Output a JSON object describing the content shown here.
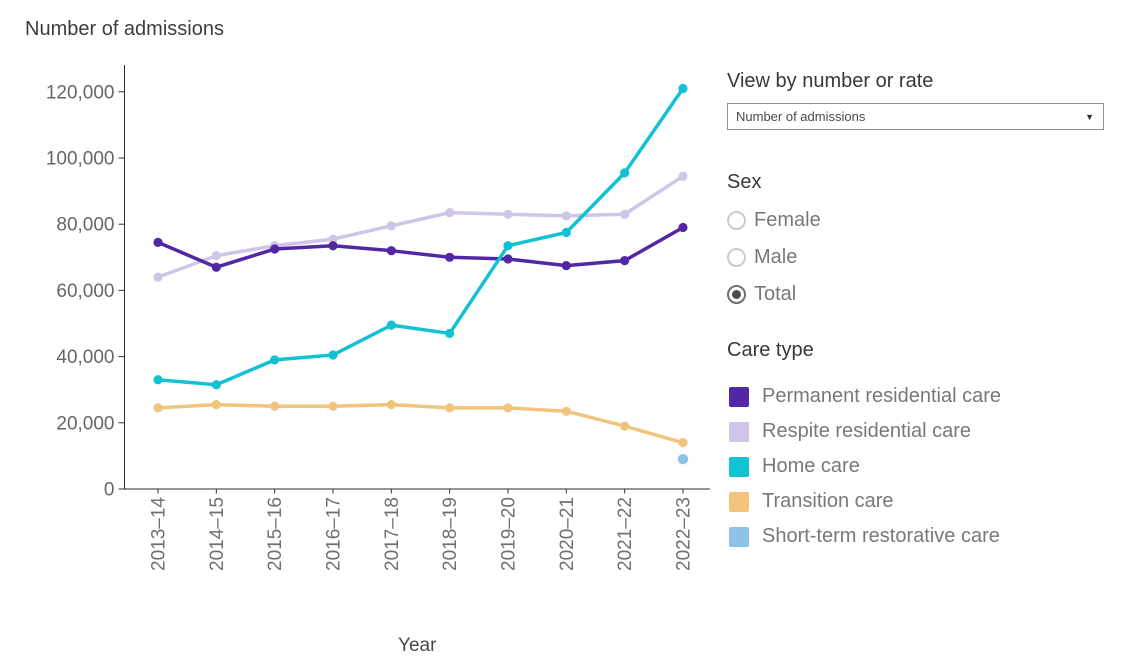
{
  "page_title": "Number of admissions",
  "chart_data": {
    "type": "line",
    "title": "Number of admissions",
    "xlabel": "Year",
    "ylabel": "Number of admissions",
    "categories": [
      "2013–14",
      "2014–15",
      "2015–16",
      "2016–17",
      "2017–18",
      "2018–19",
      "2019–20",
      "2020–21",
      "2021–22",
      "2022–23"
    ],
    "series": [
      {
        "name": "Permanent residential care",
        "color": "#5227a5",
        "values": [
          74500,
          67000,
          72500,
          73500,
          72000,
          70000,
          69500,
          67500,
          69000,
          79000
        ]
      },
      {
        "name": "Respite residential care",
        "color": "#cfc5e9",
        "values": [
          64000,
          70500,
          73500,
          75500,
          79500,
          83500,
          83000,
          82500,
          83000,
          94500
        ]
      },
      {
        "name": "Home care",
        "color": "#10c2d3",
        "values": [
          33000,
          31500,
          39000,
          40500,
          49500,
          47000,
          73500,
          77500,
          95500,
          121000
        ]
      },
      {
        "name": "Transition care",
        "color": "#f1c47d",
        "values": [
          24500,
          25500,
          25000,
          25000,
          25500,
          24500,
          24500,
          23500,
          19000,
          14000
        ]
      },
      {
        "name": "Short-term restorative care",
        "color": "#90c2e5",
        "values": [
          null,
          null,
          null,
          null,
          null,
          null,
          null,
          null,
          null,
          9000
        ]
      }
    ],
    "ylim": [
      0,
      128000
    ],
    "yticks": [
      0,
      20000,
      40000,
      60000,
      80000,
      100000,
      120000
    ],
    "grid": false,
    "legend_position": "right"
  },
  "controls": {
    "view_by": {
      "label": "View by number or rate",
      "selected": "Number of admissions",
      "caret_icon": "▼"
    },
    "sex": {
      "label": "Sex",
      "options": [
        {
          "label": "Female",
          "selected": false
        },
        {
          "label": "Male",
          "selected": false
        },
        {
          "label": "Total",
          "selected": true
        }
      ]
    },
    "care_type": {
      "label": "Care type"
    }
  }
}
